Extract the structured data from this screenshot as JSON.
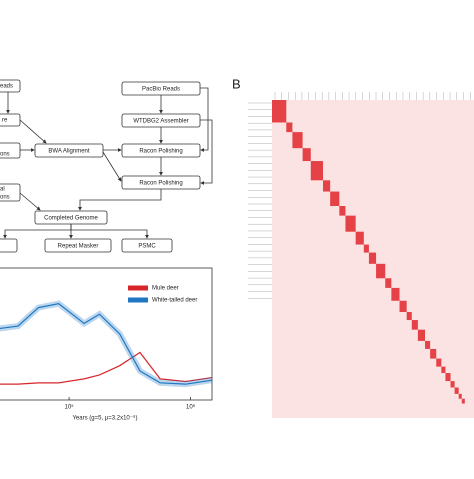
{
  "flowchart": {
    "nodes": [
      {
        "label": "eads"
      },
      {
        "label": "re"
      },
      {
        "label": "ons"
      },
      {
        "label": "BWA Alignment"
      },
      {
        "label": "PacBio Reads"
      },
      {
        "label": "WTDBG2 Assembler"
      },
      {
        "label": "Racon Polishing"
      },
      {
        "label": "Racon Polishing"
      },
      {
        "label": "al"
      },
      {
        "label": "ons"
      },
      {
        "label": "Completed Genome"
      },
      {
        "label": "Repeat Masker"
      },
      {
        "label": "PSMC"
      }
    ]
  },
  "chart_data": {
    "type": "line",
    "xlabel": "Years (g=5, μ=3.2x10⁻⁹)",
    "log_x": true,
    "x": [
      26000,
      38000,
      56000,
      82000,
      133000,
      178000,
      261000,
      383000,
      562000,
      909000,
      1500000
    ],
    "series": [
      {
        "name": "Mule deer",
        "color": "#d7262b",
        "values": [
          1.2,
          1.2,
          1.3,
          1.3,
          1.6,
          1.9,
          2.6,
          3.6,
          1.6,
          1.4,
          1.7
        ]
      },
      {
        "name": "White-tailed deer",
        "color": "#1f77c4",
        "values": [
          5.4,
          5.6,
          7.0,
          7.3,
          5.8,
          6.5,
          5.0,
          2.2,
          1.3,
          1.2,
          1.5
        ]
      }
    ],
    "xlim": [
      26000,
      1500000
    ],
    "ylim": [
      0,
      10
    ],
    "xticks": [
      {
        "value": 100000,
        "label": "10⁵"
      },
      {
        "value": 1000000,
        "label": "10⁶"
      }
    ],
    "legend": "upper right"
  },
  "panel_b": {
    "label": "B"
  }
}
